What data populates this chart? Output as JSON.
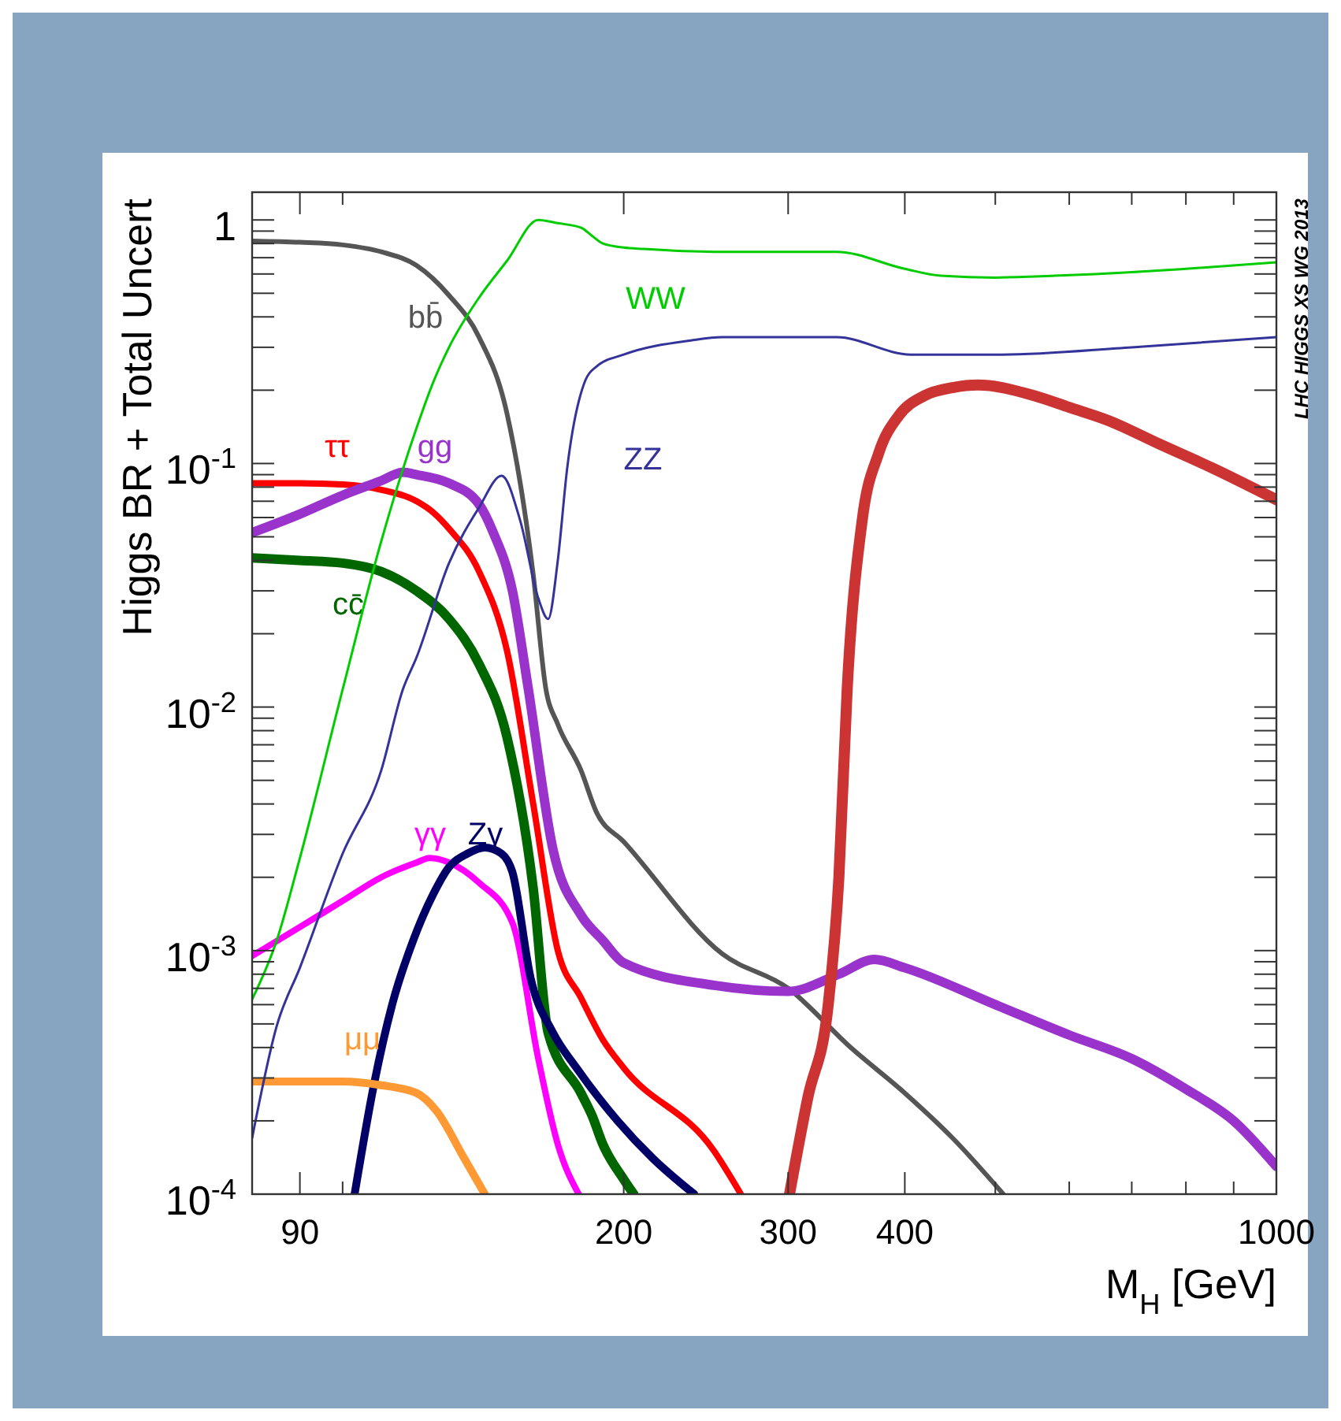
{
  "chart_data": {
    "type": "line",
    "xlabel": "M$_{H}$ [GeV]",
    "ylabel": "Higgs BR + Total Uncert",
    "log": "xy",
    "xlim": [
      80,
      1000
    ],
    "ylim": [
      0.0001,
      1.3
    ],
    "xticks": [
      90,
      {
        "value": 100,
        "label": null
      },
      200,
      300,
      400,
      {
        "value": 500,
        "label": null
      },
      {
        "value": 600,
        "label": null
      },
      {
        "value": 700,
        "label": null
      },
      {
        "value": 800,
        "label": null
      },
      {
        "value": 900,
        "label": null
      },
      1000
    ],
    "yticks": [
      {
        "value": 0.0001,
        "label": "10$^{-4}$"
      },
      {
        "value": 0.0002,
        "label": null
      },
      {
        "value": 0.0003,
        "label": null
      },
      {
        "value": 0.0004,
        "label": null
      },
      {
        "value": 0.0005,
        "label": null
      },
      {
        "value": 0.0006,
        "label": null
      },
      {
        "value": 0.0007,
        "label": null
      },
      {
        "value": 0.0008,
        "label": null
      },
      {
        "value": 0.0009,
        "label": null
      },
      {
        "value": 0.001,
        "label": "10$^{-3}$"
      },
      {
        "value": 0.002,
        "label": null
      },
      {
        "value": 0.003,
        "label": null
      },
      {
        "value": 0.004,
        "label": null
      },
      {
        "value": 0.005,
        "label": null
      },
      {
        "value": 0.006,
        "label": null
      },
      {
        "value": 0.007,
        "label": null
      },
      {
        "value": 0.008,
        "label": null
      },
      {
        "value": 0.009,
        "label": null
      },
      {
        "value": 0.01,
        "label": "10$^{-2}$"
      },
      {
        "value": 0.02,
        "label": null
      },
      {
        "value": 0.03,
        "label": null
      },
      {
        "value": 0.04,
        "label": null
      },
      {
        "value": 0.05,
        "label": null
      },
      {
        "value": 0.06,
        "label": null
      },
      {
        "value": 0.07,
        "label": null
      },
      {
        "value": 0.08,
        "label": null
      },
      {
        "value": 0.09,
        "label": null
      },
      {
        "value": 0.1,
        "label": "10$^{-1}$"
      },
      {
        "value": 0.2,
        "label": null
      },
      {
        "value": 0.3,
        "label": null
      },
      {
        "value": 0.4,
        "label": null
      },
      {
        "value": 0.5,
        "label": null
      },
      {
        "value": 0.6,
        "label": null
      },
      {
        "value": 0.7,
        "label": null
      },
      {
        "value": 0.8,
        "label": null
      },
      {
        "value": 0.9,
        "label": null
      },
      1
    ],
    "annotations": [
      "LHC HIGGS XS WG 2013"
    ],
    "series": [
      {
        "name": "bb̄",
        "color": "#555555",
        "x": [
          80,
          90,
          100,
          110,
          120,
          130,
          140,
          150,
          160,
          165,
          170,
          180,
          187,
          200,
          255,
          300,
          350,
          400,
          450,
          510
        ],
        "values": [
          0.82,
          0.81,
          0.79,
          0.74,
          0.65,
          0.49,
          0.33,
          0.16,
          0.035,
          0.012,
          0.0085,
          0.0055,
          0.0037,
          0.0028,
          0.00097,
          0.0007,
          0.0004,
          0.00026,
          0.00017,
          0.0001
        ]
      },
      {
        "name": "ττ",
        "color": "#ff0000",
        "x": [
          80,
          90,
          100,
          110,
          120,
          125,
          130,
          140,
          150,
          160,
          170,
          180,
          190,
          200,
          250,
          267
        ],
        "values": [
          0.083,
          0.083,
          0.082,
          0.078,
          0.07,
          0.063,
          0.054,
          0.036,
          0.017,
          0.004,
          0.001,
          0.00064,
          0.00043,
          0.00033,
          0.00015,
          0.0001
        ]
      },
      {
        "name": "gg",
        "color": "#9933cc",
        "x": [
          80,
          90,
          100,
          110,
          116,
          120,
          130,
          140,
          145,
          152,
          158,
          168,
          180,
          190,
          200,
          250,
          300,
          340,
          371,
          400,
          500,
          600,
          700,
          800,
          900,
          1000
        ],
        "values": [
          0.052,
          0.062,
          0.074,
          0.085,
          0.092,
          0.09,
          0.083,
          0.068,
          0.052,
          0.03,
          0.012,
          0.0026,
          0.0014,
          0.0011,
          0.00089,
          0.00072,
          0.00068,
          0.0008,
          0.00092,
          0.00085,
          0.0006,
          0.00045,
          0.00036,
          0.00027,
          0.0002,
          0.00013
        ]
      },
      {
        "name": "cc̄",
        "color": "#006600",
        "x": [
          80,
          90,
          100,
          110,
          120,
          130,
          140,
          150,
          160,
          166,
          180,
          185,
          190,
          200,
          205
        ],
        "values": [
          0.041,
          0.04,
          0.039,
          0.036,
          0.03,
          0.023,
          0.015,
          0.0075,
          0.0018,
          0.00046,
          0.00026,
          0.00021,
          0.00016,
          0.000115,
          0.0001
        ]
      },
      {
        "name": "γγ",
        "color": "#ff00ff",
        "x": [
          80,
          90,
          100,
          110,
          120,
          124,
          130,
          140,
          152,
          162,
          170,
          179
        ],
        "values": [
          0.00095,
          0.00125,
          0.0016,
          0.002,
          0.0023,
          0.0024,
          0.0023,
          0.0019,
          0.0013,
          0.00036,
          0.00016,
          0.0001
        ]
      },
      {
        "name": "Zγ",
        "color": "#000066",
        "x": [
          103,
          108,
          113,
          119,
          125,
          130,
          136,
          142,
          148,
          152,
          159,
          168,
          178,
          197,
          215,
          238
        ],
        "values": [
          0.0001,
          0.00028,
          0.0006,
          0.0011,
          0.0017,
          0.0022,
          0.0025,
          0.00265,
          0.0025,
          0.0021,
          0.00077,
          0.00046,
          0.00033,
          0.0002,
          0.00014,
          0.0001
        ]
      },
      {
        "name": "μμ",
        "color": "#ff9933",
        "x": [
          80,
          90,
          100,
          110,
          120,
          126,
          135,
          142
        ],
        "values": [
          0.00029,
          0.00029,
          0.00029,
          0.00028,
          0.00026,
          0.00022,
          0.00014,
          0.0001
        ]
      },
      {
        "name": "WW",
        "color": "#00cc00",
        "x": [
          80,
          85,
          90,
          100,
          110,
          120,
          125,
          130,
          140,
          150,
          162,
          170,
          180,
          185,
          190,
          200,
          210,
          250,
          300,
          338,
          400,
          437,
          500,
          579,
          700,
          800,
          1000
        ],
        "values": [
          0.00063,
          0.0011,
          0.0024,
          0.0118,
          0.048,
          0.14,
          0.215,
          0.3,
          0.48,
          0.68,
          1.0,
          0.97,
          0.93,
          0.86,
          0.8,
          0.77,
          0.76,
          0.74,
          0.74,
          0.74,
          0.63,
          0.59,
          0.58,
          0.59,
          0.61,
          0.63,
          0.67
        ]
      },
      {
        "name": "ZZ",
        "color": "#333399",
        "x": [
          80,
          85,
          90,
          100,
          110,
          116,
          120,
          130,
          140,
          148,
          155,
          162,
          166,
          170,
          174,
          182,
          187,
          200,
          236,
          255,
          300,
          338,
          406,
          508,
          700,
          1000
        ],
        "values": [
          0.00017,
          0.00049,
          0.00085,
          0.0025,
          0.0055,
          0.0118,
          0.016,
          0.039,
          0.066,
          0.089,
          0.058,
          0.028,
          0.023,
          0.04,
          0.096,
          0.22,
          0.25,
          0.28,
          0.32,
          0.33,
          0.33,
          0.33,
          0.28,
          0.28,
          0.3,
          0.33
        ]
      },
      {
        "color": "#cc3333",
        "x": [
          301,
          315,
          331,
          340,
          347,
          360,
          375,
          394,
          420,
          450,
          479,
          550,
          600,
          661,
          750,
          853,
          1000
        ],
        "values": [
          0.0001,
          0.00025,
          0.00059,
          0.002,
          0.0118,
          0.058,
          0.11,
          0.157,
          0.19,
          0.205,
          0.21,
          0.19,
          0.17,
          0.15,
          0.12,
          0.096,
          0.071
        ]
      }
    ]
  }
}
